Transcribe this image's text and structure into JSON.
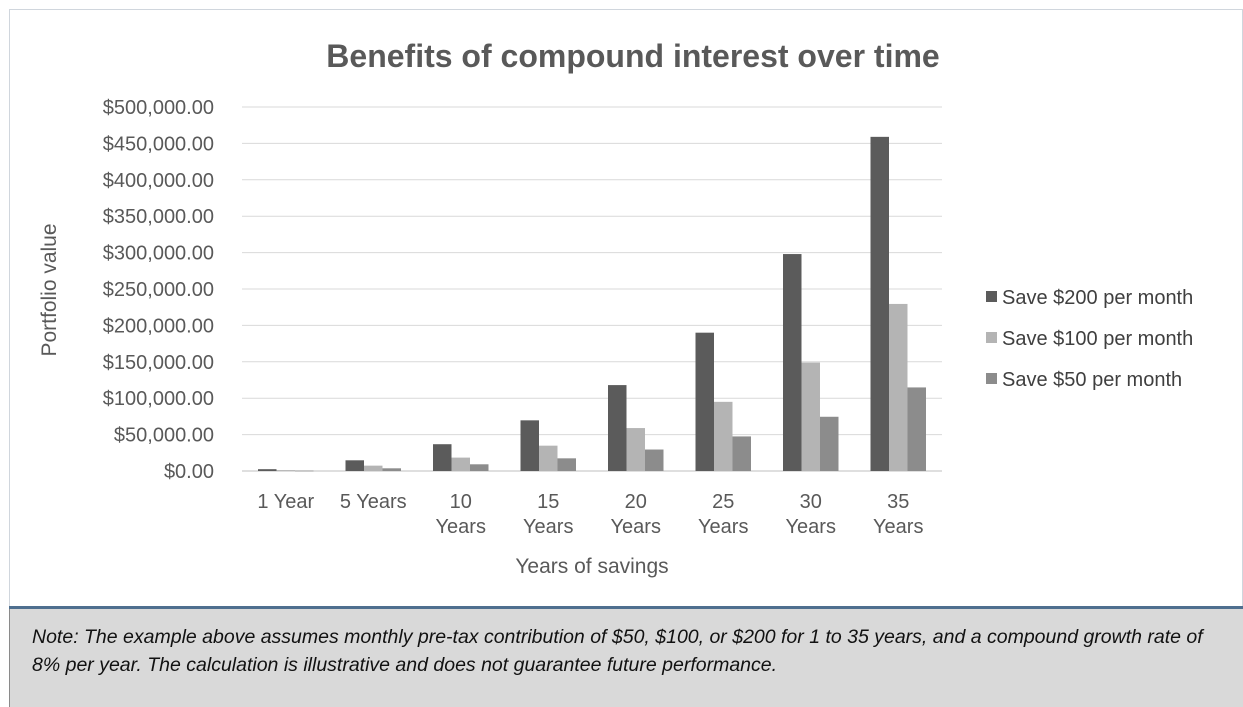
{
  "chart_data": {
    "type": "bar",
    "title": "Benefits of compound interest over time",
    "xlabel": "Years of savings",
    "ylabel": "Portfolio value",
    "ylim": [
      0,
      500000
    ],
    "yticks": [
      0,
      50000,
      100000,
      150000,
      200000,
      250000,
      300000,
      350000,
      400000,
      450000,
      500000
    ],
    "ytick_labels": [
      "$0.00",
      "$50,000.00",
      "$100,000.00",
      "$150,000.00",
      "$200,000.00",
      "$250,000.00",
      "$300,000.00",
      "$350,000.00",
      "$400,000.00",
      "$450,000.00",
      "$500,000.00"
    ],
    "categories": [
      [
        "1 Year"
      ],
      [
        "5 Years"
      ],
      [
        "10",
        "Years"
      ],
      [
        "15",
        "Years"
      ],
      [
        "20",
        "Years"
      ],
      [
        "25",
        "Years"
      ],
      [
        "30",
        "Years"
      ],
      [
        "35",
        "Years"
      ]
    ],
    "grid": true,
    "legend_position": "right",
    "series": [
      {
        "name": "Save $200 per month",
        "color": "#5b5b5b",
        "values": [
          2500,
          14700,
          36800,
          69600,
          118000,
          190000,
          298000,
          459000
        ]
      },
      {
        "name": "Save $100 per month",
        "color": "#b4b4b4",
        "values": [
          1250,
          7350,
          18400,
          34800,
          59000,
          95000,
          149000,
          229500
        ]
      },
      {
        "name": "Save $50 per month",
        "color": "#8c8c8c",
        "values": [
          620,
          3700,
          9200,
          17400,
          29500,
          47500,
          74500,
          114800
        ]
      }
    ]
  },
  "note": "Note: The example above assumes monthly pre-tax contribution of $50, $100, or $200 for 1 to 35 years, and a compound growth rate of 8% per year. The calculation is illustrative and does not guarantee future performance."
}
